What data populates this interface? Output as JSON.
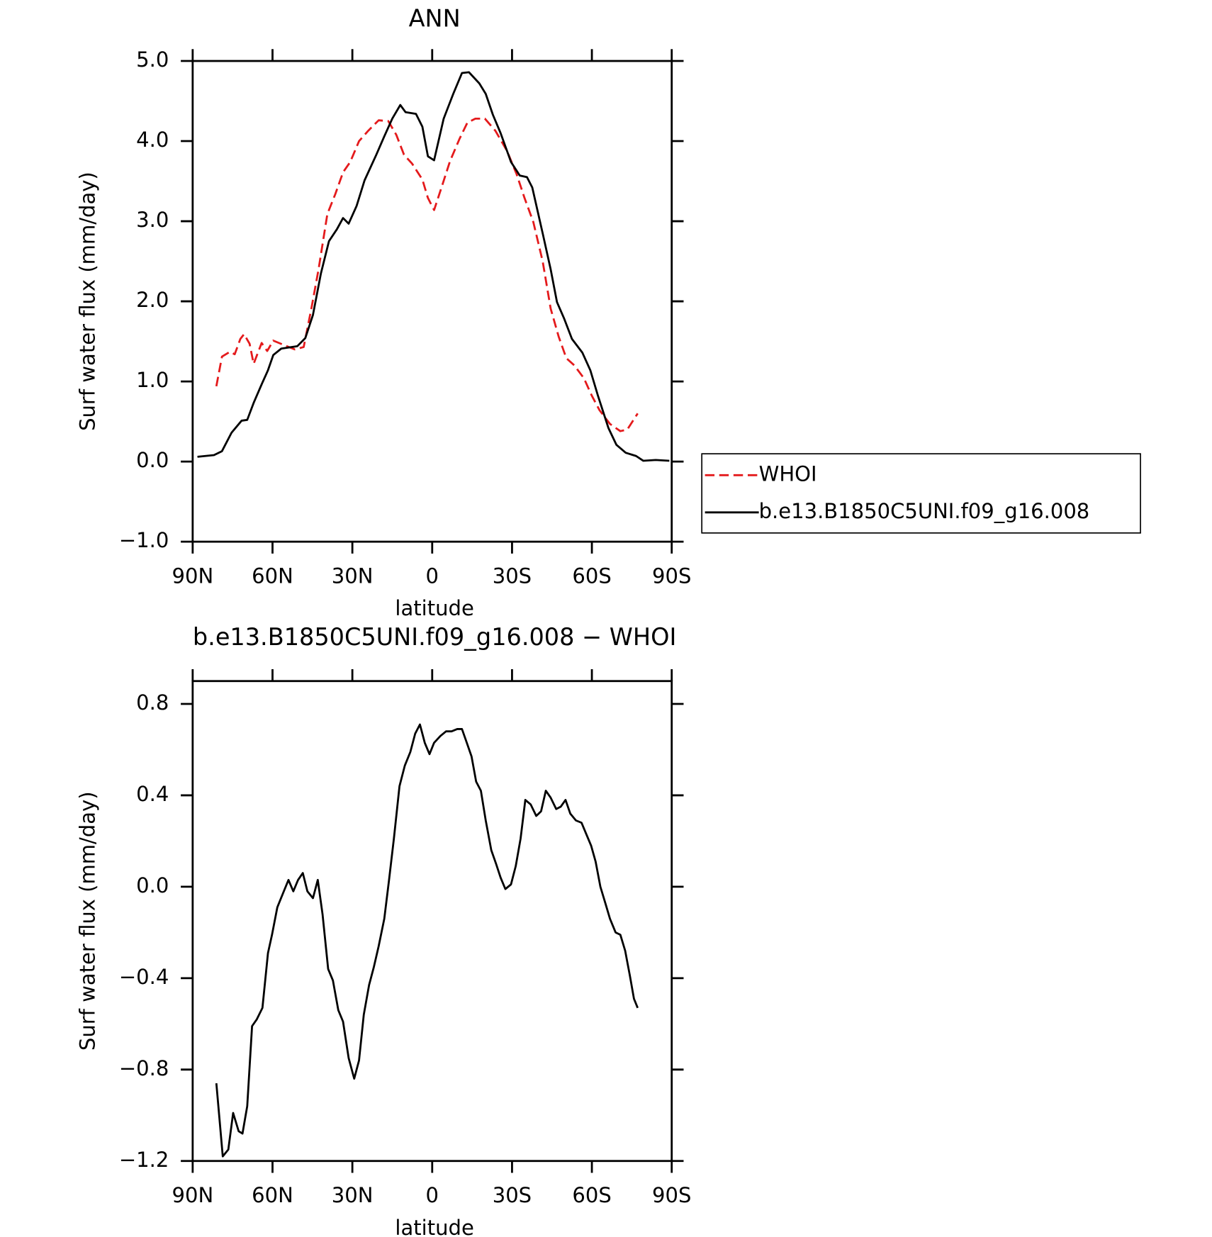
{
  "chart_data": [
    {
      "type": "line",
      "title": "ANN",
      "xlabel": "latitude",
      "ylabel": "Surf water flux (mm/day)",
      "xlim": [
        90,
        -90
      ],
      "xticks": [
        {
          "value": 90,
          "label": "90N"
        },
        {
          "value": 60,
          "label": "60N"
        },
        {
          "value": 30,
          "label": "30N"
        },
        0,
        {
          "value": -30,
          "label": "30S"
        },
        {
          "value": -60,
          "label": "60S"
        },
        {
          "value": -90,
          "label": "90S"
        }
      ],
      "ylim": [
        -1,
        5
      ],
      "yticks": [
        {
          "value": -1,
          "label": "−1.0"
        },
        {
          "value": 0,
          "label": "0.0"
        },
        {
          "value": 1,
          "label": "1.0"
        },
        {
          "value": 2,
          "label": "2.0"
        },
        {
          "value": 3,
          "label": "3.0"
        },
        {
          "value": 4,
          "label": "4.0"
        },
        {
          "value": 5,
          "label": "5.0"
        }
      ],
      "legend": "outside right",
      "series": [
        {
          "name": "WHOI",
          "color": "#e41a1c",
          "linestyle": "dashed",
          "x": [
            81.1,
            79,
            76,
            74.2,
            72.1,
            70.7,
            68.6,
            67.1,
            64.1,
            62,
            59.7,
            54.6,
            51.6,
            48.3,
            45.4,
            42.7,
            39.4,
            36.4,
            33.5,
            30.8,
            27.5,
            24,
            20.1,
            16.5,
            13.5,
            10.6,
            7.6,
            3.7,
            1.6,
            -0.7,
            -3.7,
            -6.7,
            -10.3,
            -13.2,
            -16.2,
            -19.8,
            -23.7,
            -28.1,
            -31.7,
            -34.7,
            -38,
            -41.5,
            -44.5,
            -47.5,
            -50.4,
            -53.4,
            -57,
            -60,
            -62.9,
            -66.8,
            -70.7,
            -73.3,
            -77.2
          ],
          "values": [
            0.94,
            1.31,
            1.37,
            1.34,
            1.53,
            1.59,
            1.47,
            1.22,
            1.48,
            1.38,
            1.51,
            1.44,
            1.4,
            1.43,
            1.91,
            2.4,
            3.09,
            3.34,
            3.61,
            3.74,
            4.0,
            4.13,
            4.26,
            4.25,
            4.08,
            3.83,
            3.72,
            3.52,
            3.29,
            3.14,
            3.44,
            3.75,
            4.03,
            4.23,
            4.28,
            4.28,
            4.13,
            3.88,
            3.59,
            3.29,
            2.99,
            2.5,
            1.91,
            1.56,
            1.29,
            1.2,
            1.04,
            0.82,
            0.64,
            0.47,
            0.38,
            0.4,
            0.6
          ]
        },
        {
          "name": "b.e13.B1850C5UNI.f09_g16.008",
          "color": "#000000",
          "linestyle": "solid",
          "x": [
            88.2,
            82,
            79,
            75.4,
            71.6,
            69.5,
            67,
            64,
            61.7,
            59.7,
            56.7,
            50.7,
            47.7,
            44.8,
            41.8,
            38.8,
            35.8,
            33.5,
            31.4,
            28.4,
            25.4,
            21,
            18,
            15,
            12,
            10,
            6.1,
            3.7,
            1.6,
            -0.7,
            -4.3,
            -7.9,
            -11.2,
            -13.8,
            -17.7,
            -20.1,
            -22.8,
            -25.7,
            -29.6,
            -32.9,
            -35.6,
            -37.6,
            -41.5,
            -44.5,
            -46.9,
            -49.5,
            -52.5,
            -56.4,
            -59.4,
            -62.3,
            -66.2,
            -69.2,
            -72.7,
            -76.6,
            -79.3,
            -84,
            -89.1
          ],
          "values": [
            0.06,
            0.08,
            0.13,
            0.36,
            0.51,
            0.52,
            0.74,
            0.97,
            1.14,
            1.33,
            1.41,
            1.44,
            1.54,
            1.83,
            2.35,
            2.75,
            2.9,
            3.04,
            2.97,
            3.19,
            3.51,
            3.83,
            4.06,
            4.28,
            4.45,
            4.36,
            4.34,
            4.18,
            3.81,
            3.76,
            4.28,
            4.59,
            4.85,
            4.86,
            4.72,
            4.59,
            4.33,
            4.1,
            3.74,
            3.57,
            3.55,
            3.42,
            2.85,
            2.4,
            1.99,
            1.79,
            1.53,
            1.36,
            1.14,
            0.82,
            0.42,
            0.21,
            0.11,
            0.07,
            0.01,
            0.02,
            0.01
          ]
        }
      ]
    },
    {
      "type": "line",
      "title": "b.e13.B1850C5UNI.f09_g16.008 − WHOI",
      "xlabel": "latitude",
      "ylabel": "Surf water flux (mm/day)",
      "xlim": [
        90,
        -90
      ],
      "xticks": [
        {
          "value": 90,
          "label": "90N"
        },
        {
          "value": 60,
          "label": "60N"
        },
        {
          "value": 30,
          "label": "30N"
        },
        0,
        {
          "value": -30,
          "label": "30S"
        },
        {
          "value": -60,
          "label": "60S"
        },
        {
          "value": -90,
          "label": "90S"
        }
      ],
      "ylim": [
        -1.2,
        0.9
      ],
      "yticks": [
        {
          "value": -1.2,
          "label": "−1.2"
        },
        {
          "value": -0.8,
          "label": "−0.8"
        },
        {
          "value": -0.4,
          "label": "−0.4"
        },
        {
          "value": 0,
          "label": "0.0"
        },
        0.4,
        0.8
      ],
      "series": [
        {
          "color": "#000000",
          "linestyle": "solid",
          "x": [
            81.1,
            78.7,
            76.6,
            74.8,
            72.7,
            71.3,
            69.5,
            67.7,
            65.9,
            63.8,
            61.7,
            60.2,
            58.2,
            56.1,
            54,
            52.2,
            50.4,
            48.6,
            46.9,
            44.8,
            43,
            41.2,
            39.1,
            37.3,
            35.3,
            33.5,
            31.4,
            29.3,
            27.5,
            25.7,
            23.7,
            21.9,
            20.1,
            18,
            16.2,
            14.4,
            12.3,
            10.3,
            8.2,
            6.4,
            4.6,
            2.8,
            1,
            -0.7,
            -3.1,
            -5.2,
            -7.3,
            -9.4,
            -11.2,
            -13,
            -14.8,
            -16.5,
            -18.3,
            -20.1,
            -22.2,
            -24,
            -25.7,
            -27.5,
            -29.6,
            -31.4,
            -33.2,
            -35,
            -37,
            -39.1,
            -40.9,
            -42.7,
            -44.5,
            -46.6,
            -48.3,
            -50.1,
            -51.9,
            -54,
            -56.1,
            -57.9,
            -59.7,
            -61.4,
            -63.2,
            -65,
            -66.8,
            -68.9,
            -70.7,
            -72.5,
            -74.3,
            -75.8,
            -77.2
          ],
          "values": [
            -0.86,
            -1.18,
            -1.15,
            -0.99,
            -1.07,
            -1.08,
            -0.96,
            -0.61,
            -0.58,
            -0.53,
            -0.29,
            -0.21,
            -0.09,
            -0.03,
            0.03,
            -0.02,
            0.03,
            0.06,
            -0.02,
            -0.05,
            0.03,
            -0.12,
            -0.36,
            -0.41,
            -0.54,
            -0.59,
            -0.75,
            -0.84,
            -0.76,
            -0.56,
            -0.43,
            -0.35,
            -0.26,
            -0.14,
            0.03,
            0.21,
            0.44,
            0.53,
            0.59,
            0.67,
            0.71,
            0.63,
            0.58,
            0.63,
            0.66,
            0.68,
            0.68,
            0.69,
            0.69,
            0.63,
            0.57,
            0.46,
            0.42,
            0.29,
            0.16,
            0.1,
            0.04,
            -0.01,
            0.01,
            0.09,
            0.21,
            0.38,
            0.36,
            0.31,
            0.33,
            0.42,
            0.39,
            0.34,
            0.35,
            0.38,
            0.32,
            0.29,
            0.28,
            0.23,
            0.18,
            0.11,
            0.0,
            -0.07,
            -0.14,
            -0.2,
            -0.21,
            -0.28,
            -0.39,
            -0.49,
            -0.53
          ]
        }
      ]
    }
  ]
}
